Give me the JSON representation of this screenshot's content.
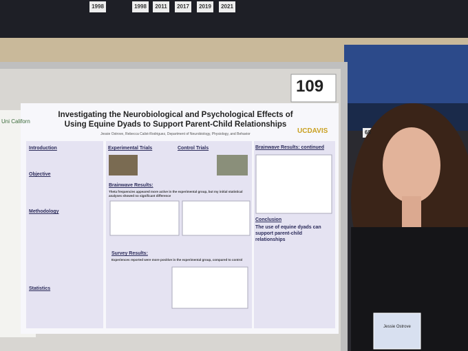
{
  "banners": [
    "1998",
    "2011",
    "2017",
    "2019",
    "2021"
  ],
  "sign_number": "68",
  "poster_number": "109",
  "left_poster": {
    "title": "Uni Californ"
  },
  "poster": {
    "title": "Investigating the Neurobiological and Psychological Effects of Using Equine Dyads to Support Parent-Child Relationships",
    "authors": "Jessie Ostrove, Rebecca Calixt-Rodriguez, Department of Neurobiology, Physiology, and Behavior",
    "logo": "UCDAVIS",
    "sections": {
      "introduction": "Introduction",
      "objective": "Objective",
      "methodology": "Methodology",
      "statistics": "Statistics",
      "experimental_trials": "Experimental Trials",
      "control_trials": "Control Trials",
      "brainwave_results": "Brainwave Results:",
      "brainwave_text": "Theta frequencies appeared more active in the experimental group, but my initial statistical analyses showed no significant difference",
      "survey_results": "Survey Results:",
      "survey_text": "Experiences reported were more positive in the experimental group, compared to control",
      "brainwave_continued": "Brainwave Results: continued",
      "conclusion": "Conclusion",
      "conclusion_text": "The use of equine dyads can support parent-child relationships"
    }
  },
  "badge": {
    "name": "Jessie Ostrove"
  }
}
